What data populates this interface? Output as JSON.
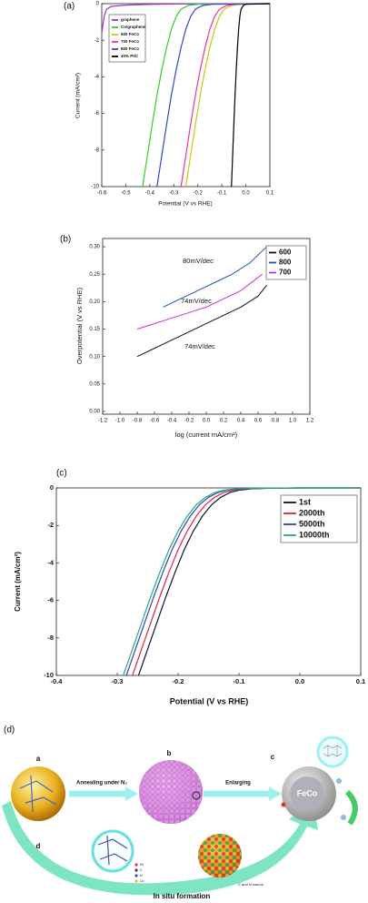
{
  "chart_data": [
    {
      "type": "line",
      "label": "(a)",
      "xlabel": "Potential (V vs RHE)",
      "ylabel": "Current (mA/cm²)",
      "xlim": [
        -0.6,
        0.1
      ],
      "ylim": [
        -10,
        0
      ],
      "xticks": [
        -0.6,
        -0.5,
        -0.4,
        -0.3,
        -0.2,
        -0.1,
        {
          "value": 0,
          "label": "0.0"
        },
        0.1
      ],
      "yticks": [
        -10,
        -8,
        -6,
        -4,
        -2,
        0
      ],
      "grid": false,
      "legend": "upper left",
      "series": [
        {
          "name": "graphene",
          "color": "#9933cc",
          "x": [
            -0.6,
            -0.59,
            -0.58,
            -0.56,
            -0.5,
            -0.4,
            -0.3,
            0.1
          ],
          "values": [
            -1.6,
            -0.7,
            -0.3,
            -0.15,
            -0.08,
            -0.04,
            -0.02,
            0
          ]
        },
        {
          "name": "Co/graphene",
          "color": "#33cc33",
          "x": [
            -0.43,
            -0.41,
            -0.39,
            -0.37,
            -0.35,
            -0.33,
            -0.31,
            -0.29,
            -0.27,
            -0.24,
            -0.2,
            0.1
          ],
          "values": [
            -10,
            -8.3,
            -6.6,
            -5.0,
            -3.6,
            -2.4,
            -1.4,
            -0.7,
            -0.3,
            -0.1,
            -0.03,
            0
          ]
        },
        {
          "name": "600 FeCo",
          "color": "#c8c800",
          "x": [
            -0.25,
            -0.23,
            -0.21,
            -0.19,
            -0.17,
            -0.15,
            -0.13,
            -0.11,
            -0.09,
            -0.06,
            -0.02,
            0.1
          ],
          "values": [
            -10,
            -8.3,
            -6.6,
            -5.0,
            -3.6,
            -2.4,
            -1.4,
            -0.7,
            -0.3,
            -0.1,
            -0.03,
            0
          ]
        },
        {
          "name": "700 FeCo",
          "color": "#ee3399",
          "x": [
            -0.27,
            -0.25,
            -0.23,
            -0.21,
            -0.19,
            -0.17,
            -0.15,
            -0.13,
            -0.11,
            -0.08,
            -0.04,
            0.1
          ],
          "values": [
            -10,
            -8.3,
            -6.6,
            -5.0,
            -3.6,
            -2.4,
            -1.4,
            -0.7,
            -0.3,
            -0.1,
            -0.03,
            0
          ]
        },
        {
          "name": "800 FeCo",
          "color": "#3344cc",
          "x": [
            -0.37,
            -0.35,
            -0.33,
            -0.31,
            -0.29,
            -0.27,
            -0.25,
            -0.23,
            -0.21,
            -0.18,
            -0.14,
            0.1
          ],
          "values": [
            -10,
            -8.3,
            -6.6,
            -5.0,
            -3.6,
            -2.4,
            -1.4,
            -0.7,
            -0.3,
            -0.1,
            -0.03,
            0
          ]
        },
        {
          "name": "40% Pt/C",
          "color": "#000000",
          "x": [
            -0.06,
            -0.055,
            -0.05,
            -0.045,
            -0.04,
            -0.035,
            -0.03,
            -0.025,
            -0.02,
            -0.01,
            0,
            0.1
          ],
          "values": [
            -10,
            -8.3,
            -6.6,
            -5.0,
            -3.6,
            -2.4,
            -1.4,
            -0.7,
            -0.3,
            -0.1,
            -0.03,
            0
          ]
        }
      ]
    },
    {
      "type": "line",
      "label": "(b)",
      "xlabel": "log (current mA/cm²)",
      "ylabel": "Overpotential (V vs RHE)",
      "xlim": [
        -1.2,
        1.2
      ],
      "ylim": [
        -0.005,
        0.315
      ],
      "xticks": [
        -1.2,
        {
          "value": -1,
          "label": "-1.0"
        },
        -0.8,
        -0.6,
        -0.4,
        -0.2,
        {
          "value": 0,
          "label": "0.0"
        },
        0.2,
        0.4,
        0.6,
        0.8,
        {
          "value": 1,
          "label": "1.0"
        },
        1.2
      ],
      "yticks": [
        {
          "value": 0,
          "label": "0.00"
        },
        0.05,
        {
          "value": 0.1,
          "label": "0.10"
        },
        0.15,
        {
          "value": 0.2,
          "label": "0.20"
        },
        0.25,
        {
          "value": 0.3,
          "label": "0.30"
        }
      ],
      "grid": false,
      "legend": "upper right",
      "annotations": [
        "80mV/dec",
        "74mV/dec",
        "74mV/dec"
      ],
      "series": [
        {
          "name": "600",
          "color": "#111111",
          "x": [
            -0.8,
            -0.6,
            -0.4,
            -0.2,
            0,
            0.2,
            0.4,
            0.6,
            0.7
          ],
          "values": [
            0.1,
            0.115,
            0.13,
            0.145,
            0.16,
            0.175,
            0.19,
            0.21,
            0.23
          ]
        },
        {
          "name": "800",
          "color": "#2255aa",
          "x": [
            -0.5,
            -0.3,
            -0.1,
            0.1,
            0.3,
            0.5,
            0.7
          ],
          "values": [
            0.19,
            0.205,
            0.22,
            0.235,
            0.25,
            0.27,
            0.3
          ]
        },
        {
          "name": "700",
          "color": "#cc33cc",
          "x": [
            -0.8,
            -0.6,
            -0.4,
            -0.2,
            0,
            0.2,
            0.4,
            0.65
          ],
          "values": [
            0.15,
            0.16,
            0.17,
            0.18,
            0.19,
            0.205,
            0.22,
            0.25
          ]
        }
      ]
    },
    {
      "type": "line",
      "label": "(c)",
      "xlabel": "Potential (V vs RHE)",
      "ylabel": "Current (mA/cm²)",
      "xlim": [
        -0.4,
        0.1
      ],
      "ylim": [
        -10,
        0
      ],
      "xticks": [
        -0.4,
        -0.3,
        -0.2,
        -0.1,
        {
          "value": 0,
          "label": "0.0"
        },
        0.1
      ],
      "yticks": [
        -10,
        -8,
        -6,
        -4,
        -2,
        0
      ],
      "grid": false,
      "legend": "upper right",
      "series": [
        {
          "name": "1st",
          "color": "#111133",
          "x": [
            -0.265,
            -0.25,
            -0.235,
            -0.22,
            -0.205,
            -0.19,
            -0.175,
            -0.16,
            -0.145,
            -0.13,
            -0.115,
            -0.1,
            -0.08,
            -0.05,
            0,
            0.1
          ],
          "values": [
            -10,
            -8.6,
            -7.2,
            -5.8,
            -4.5,
            -3.3,
            -2.3,
            -1.5,
            -0.9,
            -0.5,
            -0.25,
            -0.12,
            -0.05,
            -0.02,
            0,
            0
          ]
        },
        {
          "name": "2000th",
          "color": "#dd2244",
          "x": [
            -0.275,
            -0.26,
            -0.245,
            -0.23,
            -0.215,
            -0.2,
            -0.185,
            -0.17,
            -0.155,
            -0.14,
            -0.125,
            -0.11,
            -0.09,
            -0.06,
            0,
            0.1
          ],
          "values": [
            -10,
            -8.6,
            -7.2,
            -5.8,
            -4.5,
            -3.3,
            -2.3,
            -1.5,
            -0.9,
            -0.5,
            -0.25,
            -0.12,
            -0.05,
            -0.02,
            0,
            0
          ]
        },
        {
          "name": "5000th",
          "color": "#3344aa",
          "x": [
            -0.285,
            -0.27,
            -0.255,
            -0.24,
            -0.225,
            -0.21,
            -0.195,
            -0.18,
            -0.165,
            -0.15,
            -0.135,
            -0.12,
            -0.1,
            -0.07,
            0,
            0.1
          ],
          "values": [
            -10,
            -8.6,
            -7.2,
            -5.8,
            -4.5,
            -3.3,
            -2.3,
            -1.5,
            -0.9,
            -0.5,
            -0.25,
            -0.12,
            -0.05,
            -0.02,
            0,
            0
          ]
        },
        {
          "name": "10000th",
          "color": "#22aa88",
          "x": [
            -0.29,
            -0.275,
            -0.26,
            -0.245,
            -0.23,
            -0.215,
            -0.2,
            -0.185,
            -0.17,
            -0.155,
            -0.14,
            -0.125,
            -0.105,
            -0.075,
            0,
            0.1
          ],
          "values": [
            -10,
            -8.6,
            -7.2,
            -5.8,
            -4.5,
            -3.3,
            -2.3,
            -1.5,
            -0.9,
            -0.5,
            -0.25,
            -0.12,
            -0.05,
            -0.02,
            0,
            0
          ]
        }
      ]
    }
  ],
  "diagram": {
    "label": "(d)",
    "steps": [
      "a",
      "b",
      "c",
      "d"
    ],
    "arrows": [
      "Annealing under N₂",
      "Enlarging"
    ],
    "core": "FeCo",
    "elements": [
      "Fe",
      "C",
      "N",
      "Co"
    ],
    "source": "C and N source",
    "caption": "In situ formation"
  }
}
